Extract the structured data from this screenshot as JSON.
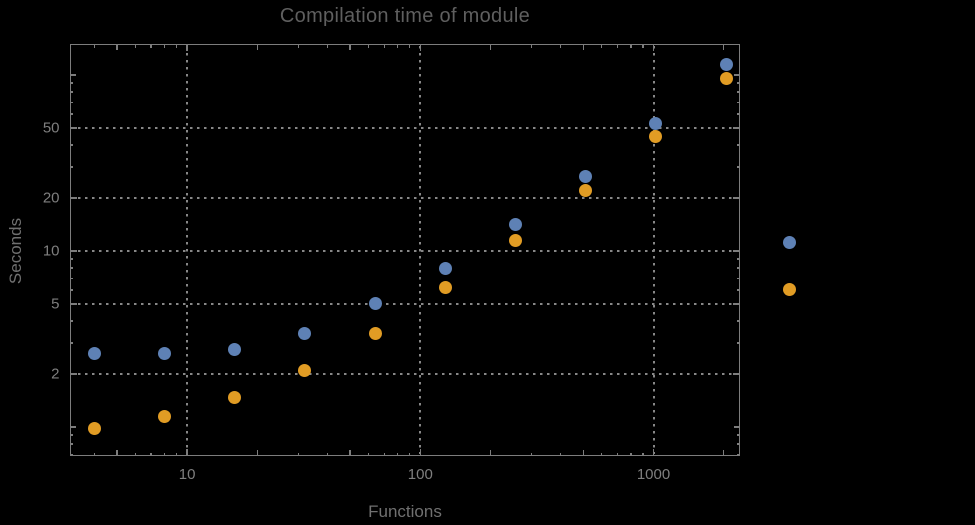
{
  "chart_data": {
    "type": "scatter",
    "title": "Compilation time of module",
    "xlabel": "Functions",
    "ylabel": "Seconds",
    "x_scale": "log",
    "y_scale": "log",
    "xlim": [
      3.13,
      2349
    ],
    "ylim": [
      0.684,
      150
    ],
    "x": [
      4,
      8,
      16,
      32,
      64,
      128,
      256,
      512,
      1024,
      2048
    ],
    "series": [
      {
        "name": "blue",
        "color": "#5e81b5",
        "values": [
          2.6,
          2.6,
          2.75,
          3.4,
          5.0,
          8.0,
          14.1,
          26.5,
          53,
          115
        ]
      },
      {
        "name": "orange",
        "color": "#e19c24",
        "values": [
          0.98,
          1.15,
          1.48,
          2.1,
          3.4,
          6.2,
          11.5,
          22,
          45,
          95
        ]
      }
    ],
    "x_ticks": [
      {
        "value": 10,
        "label": "10"
      },
      {
        "value": 100,
        "label": "100"
      },
      {
        "value": 1000,
        "label": "1000"
      }
    ],
    "y_ticks": [
      {
        "value": 2,
        "label": "2"
      },
      {
        "value": 5,
        "label": "5"
      },
      {
        "value": 10,
        "label": "10"
      },
      {
        "value": 20,
        "label": "20"
      },
      {
        "value": 50,
        "label": "50"
      }
    ],
    "x_major_unlabeled": [
      5,
      20,
      50,
      200,
      500,
      2000
    ],
    "y_major_unlabeled": [
      1,
      100
    ],
    "x_minor_ticks": [
      4,
      6,
      7,
      8,
      9,
      30,
      40,
      60,
      70,
      80,
      90,
      300,
      400,
      600,
      700,
      800,
      900
    ],
    "y_minor_ticks": [
      0.7,
      0.8,
      0.9,
      3,
      4,
      6,
      7,
      8,
      9,
      30,
      40,
      60,
      70,
      80,
      90
    ],
    "grid": {
      "x_values": [
        10,
        100,
        1000
      ],
      "y_values": [
        2,
        5,
        10,
        20,
        50
      ],
      "style": "dotted",
      "color": "#878787"
    },
    "legend": {
      "position": "right-center",
      "entries": [
        {
          "series": "blue",
          "color": "#5e81b5",
          "label": ""
        },
        {
          "series": "orange",
          "color": "#e19c24",
          "label": ""
        }
      ]
    }
  },
  "colors": {
    "background": "#000000",
    "frame": "#7d7d7d",
    "gridline": "#878787",
    "tick_label": "#7f7f7f",
    "axis_label": "#707070",
    "title": "#5f5f5f"
  }
}
